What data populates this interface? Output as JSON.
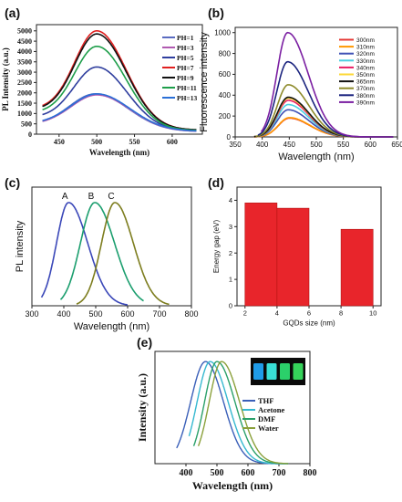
{
  "chart_data": [
    {
      "panel": "(a)",
      "type": "line",
      "xlabel": "Wavelength (nm)",
      "ylabel": "PL Intensity (a.u.)",
      "xlim": [
        420,
        640
      ],
      "ylim": [
        0,
        5300
      ],
      "xticks": [
        450,
        500,
        550,
        600
      ],
      "yticks": [
        0,
        500,
        1000,
        1500,
        2000,
        2500,
        3000,
        3500,
        4000,
        4500,
        5000
      ],
      "legend_position": "right",
      "series": [
        {
          "name": "PH=1",
          "color": "#5a6bc0",
          "peak_x": 498,
          "peak_y": 1950,
          "left_y": 500,
          "right_y": 130,
          "sigma_l": 34,
          "sigma_r": 44
        },
        {
          "name": "PH=3",
          "color": "#b05ab0",
          "peak_x": 500,
          "peak_y": 1900,
          "left_y": 520,
          "right_y": 130,
          "sigma_l": 34,
          "sigma_r": 44
        },
        {
          "name": "PH=5",
          "color": "#2f3e9e",
          "peak_x": 500,
          "peak_y": 3250,
          "left_y": 900,
          "right_y": 160,
          "sigma_l": 30,
          "sigma_r": 40
        },
        {
          "name": "PH=7",
          "color": "#e02020",
          "peak_x": 500,
          "peak_y": 5000,
          "left_y": 1350,
          "right_y": 200,
          "sigma_l": 29,
          "sigma_r": 39
        },
        {
          "name": "PH=9",
          "color": "#111111",
          "peak_x": 500,
          "peak_y": 4850,
          "left_y": 1300,
          "right_y": 200,
          "sigma_l": 29,
          "sigma_r": 39
        },
        {
          "name": "PH=11",
          "color": "#1e9e4a",
          "peak_x": 500,
          "peak_y": 4250,
          "left_y": 1150,
          "right_y": 180,
          "sigma_l": 29,
          "sigma_r": 39
        },
        {
          "name": "PH=13",
          "color": "#2a6fd6",
          "peak_x": 500,
          "peak_y": 1950,
          "left_y": 560,
          "right_y": 140,
          "sigma_l": 34,
          "sigma_r": 44
        }
      ]
    },
    {
      "panel": "(b)",
      "type": "line",
      "xlabel": "Wavelength (nm)",
      "ylabel": "Fluorescence intensity",
      "xlim": [
        350,
        650
      ],
      "ylim": [
        0,
        1050
      ],
      "xticks": [
        350,
        400,
        450,
        500,
        550,
        600,
        650
      ],
      "yticks": [
        0,
        200,
        400,
        600,
        800,
        1000
      ],
      "legend_position": "right",
      "series": [
        {
          "name": "300nm",
          "color": "#e53935",
          "peak_x": 450,
          "peak_y": 180,
          "start_x": 385
        },
        {
          "name": "310nm",
          "color": "#ff9800",
          "peak_x": 450,
          "peak_y": 185,
          "start_x": 385
        },
        {
          "name": "320nm",
          "color": "#3f51b5",
          "peak_x": 448,
          "peak_y": 260,
          "start_x": 385
        },
        {
          "name": "330nm",
          "color": "#4dd0e1",
          "peak_x": 448,
          "peak_y": 310,
          "start_x": 385
        },
        {
          "name": "340nm",
          "color": "#e91e63",
          "peak_x": 448,
          "peak_y": 350,
          "start_x": 385
        },
        {
          "name": "350nm",
          "color": "#fdd835",
          "peak_x": 448,
          "peak_y": 370,
          "start_x": 385
        },
        {
          "name": "365nm",
          "color": "#111111",
          "peak_x": 448,
          "peak_y": 380,
          "start_x": 385
        },
        {
          "name": "370nm",
          "color": "#8d8a2a",
          "peak_x": 448,
          "peak_y": 500,
          "start_x": 388
        },
        {
          "name": "380nm",
          "color": "#1a237e",
          "peak_x": 447,
          "peak_y": 720,
          "start_x": 392
        },
        {
          "name": "390nm",
          "color": "#7b1fa2",
          "peak_x": 447,
          "peak_y": 1000,
          "start_x": 398
        }
      ]
    },
    {
      "panel": "(c)",
      "type": "line",
      "xlabel": "Wavelength (nm)",
      "ylabel": "PL intensity",
      "xlim": [
        300,
        800
      ],
      "ylim": [
        0,
        1.15
      ],
      "xticks": [
        300,
        400,
        500,
        600,
        700,
        800
      ],
      "series": [
        {
          "name": "A",
          "color": "#3a47b8",
          "peak_x": 415,
          "peak_y": 1.0,
          "start_x": 330,
          "end_x": 600,
          "sigma_l": 38,
          "sigma_r": 60
        },
        {
          "name": "B",
          "color": "#1b9e6e",
          "peak_x": 497,
          "peak_y": 1.0,
          "start_x": 390,
          "end_x": 650,
          "sigma_l": 45,
          "sigma_r": 62
        },
        {
          "name": "C",
          "color": "#7d7d1e",
          "peak_x": 560,
          "peak_y": 1.0,
          "start_x": 440,
          "end_x": 730,
          "sigma_l": 42,
          "sigma_r": 58
        }
      ]
    },
    {
      "panel": "(d)",
      "type": "bar",
      "xlabel": "GQDs size (nm)",
      "ylabel": "Energy gap (eV)",
      "xlim": [
        1.5,
        10.5
      ],
      "ylim": [
        0,
        4.5
      ],
      "xticks": [
        2,
        4,
        6,
        8,
        10
      ],
      "yticks": [
        0,
        1,
        2,
        3,
        4
      ],
      "color": "#e8252b",
      "bars": [
        {
          "x0": 2,
          "x1": 4,
          "value": 3.9
        },
        {
          "x0": 4,
          "x1": 6,
          "value": 3.7
        },
        {
          "x0": 8,
          "x1": 10,
          "value": 2.9
        }
      ]
    },
    {
      "panel": "(e)",
      "type": "line",
      "xlabel": "Wavelength (nm)",
      "ylabel": "Intensity (a.u.)",
      "xlim": [
        300,
        800
      ],
      "ylim": [
        0,
        1.1
      ],
      "xticks": [
        400,
        500,
        600,
        700,
        800
      ],
      "legend_position": "right",
      "series": [
        {
          "name": "THF",
          "color": "#3a5fb8",
          "peak_x": 463,
          "peak_y": 1.0,
          "start_x": 370,
          "sigma_l": 48,
          "sigma_r": 58
        },
        {
          "name": "Acetone",
          "color": "#35b8d0",
          "peak_x": 478,
          "peak_y": 1.0,
          "start_x": 410,
          "sigma_l": 42,
          "sigma_r": 58
        },
        {
          "name": "DMF",
          "color": "#2aa06a",
          "peak_x": 500,
          "peak_y": 1.0,
          "start_x": 425,
          "sigma_l": 40,
          "sigma_r": 58
        },
        {
          "name": "Water",
          "color": "#8aa03a",
          "peak_x": 515,
          "peak_y": 1.0,
          "start_x": 440,
          "sigma_l": 40,
          "sigma_r": 58
        }
      ],
      "inset_vial_colors": [
        "#1f9be8",
        "#39e0d6",
        "#2bd06a",
        "#35d35a"
      ]
    }
  ]
}
